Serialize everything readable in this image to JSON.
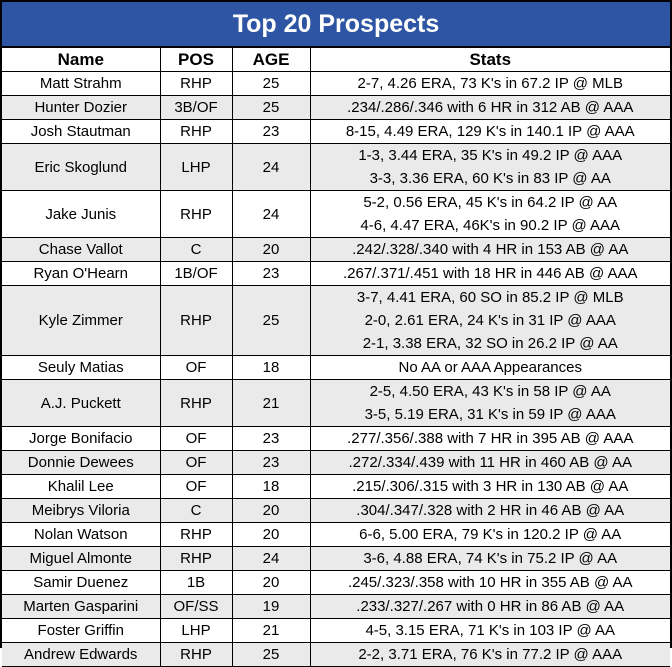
{
  "title": "Top 20 Prospects",
  "columns": [
    "Name",
    "POS",
    "AGE",
    "Stats"
  ],
  "rows": [
    {
      "name": "Matt Strahm",
      "pos": "RHP",
      "age": "25",
      "stats": [
        "2-7, 4.26 ERA, 73 K's in 67.2 IP @ MLB"
      ]
    },
    {
      "name": "Hunter Dozier",
      "pos": "3B/OF",
      "age": "25",
      "stats": [
        ".234/.286/.346 with 6 HR in 312 AB @ AAA"
      ]
    },
    {
      "name": "Josh Stautman",
      "pos": "RHP",
      "age": "23",
      "stats": [
        "8-15, 4.49 ERA, 129 K's in 140.1 IP @ AAA"
      ]
    },
    {
      "name": "Eric Skoglund",
      "pos": "LHP",
      "age": "24",
      "stats": [
        "1-3, 3.44 ERA, 35 K's in 49.2 IP @ AAA",
        "3-3, 3.36 ERA, 60 K's in 83 IP @ AA"
      ]
    },
    {
      "name": "Jake Junis",
      "pos": "RHP",
      "age": "24",
      "stats": [
        "5-2, 0.56 ERA, 45 K's in 64.2 IP @ AA",
        "4-6, 4.47 ERA, 46K's in 90.2 IP @ AAA"
      ]
    },
    {
      "name": "Chase Vallot",
      "pos": "C",
      "age": "20",
      "stats": [
        ".242/.328/.340 with 4 HR in 153 AB @ AA"
      ]
    },
    {
      "name": "Ryan O'Hearn",
      "pos": "1B/OF",
      "age": "23",
      "stats": [
        ".267/.371/.451 with 18 HR in 446 AB @ AAA"
      ]
    },
    {
      "name": "Kyle Zimmer",
      "pos": "RHP",
      "age": "25",
      "stats": [
        "3-7, 4.41 ERA, 60 SO in 85.2 IP @ MLB",
        "2-0, 2.61 ERA, 24 K's in 31 IP @ AAA",
        "2-1, 3.38 ERA, 32 SO in 26.2 IP @ AA"
      ]
    },
    {
      "name": "Seuly Matias",
      "pos": "OF",
      "age": "18",
      "stats": [
        "No AA or AAA Appearances"
      ]
    },
    {
      "name": "A.J. Puckett",
      "pos": "RHP",
      "age": "21",
      "stats": [
        "2-5, 4.50 ERA, 43 K's in 58 IP @ AA",
        "3-5, 5.19 ERA, 31 K's in 59 IP @ AAA"
      ]
    },
    {
      "name": "Jorge Bonifacio",
      "pos": "OF",
      "age": "23",
      "stats": [
        ".277/.356/.388 with 7 HR in 395 AB @ AAA"
      ]
    },
    {
      "name": "Donnie Dewees",
      "pos": "OF",
      "age": "23",
      "stats": [
        ".272/.334/.439 with 11 HR in 460 AB @ AA"
      ]
    },
    {
      "name": "Khalil Lee",
      "pos": "OF",
      "age": "18",
      "stats": [
        ".215/.306/.315 with 3 HR in 130 AB @ AA"
      ]
    },
    {
      "name": "Meibrys Viloria",
      "pos": "C",
      "age": "20",
      "stats": [
        ".304/.347/.328 with 2 HR in 46 AB @ AA"
      ]
    },
    {
      "name": "Nolan Watson",
      "pos": "RHP",
      "age": "20",
      "stats": [
        "6-6, 5.00 ERA, 79 K's in 120.2 IP @ AA"
      ]
    },
    {
      "name": "Miguel Almonte",
      "pos": "RHP",
      "age": "24",
      "stats": [
        "3-6, 4.88 ERA, 74 K's in 75.2 IP @ AA"
      ]
    },
    {
      "name": "Samir Duenez",
      "pos": "1B",
      "age": "20",
      "stats": [
        ".245/.323/.358 with 10 HR in 355 AB @ AA"
      ]
    },
    {
      "name": "Marten Gasparini",
      "pos": "OF/SS",
      "age": "19",
      "stats": [
        ".233/.327/.267 with 0 HR in 86 AB @ AA"
      ]
    },
    {
      "name": "Foster Griffin",
      "pos": "LHP",
      "age": "21",
      "stats": [
        "4-5, 3.15 ERA, 71 K's in 103 IP  @ AA"
      ]
    },
    {
      "name": "Andrew Edwards",
      "pos": "RHP",
      "age": "25",
      "stats": [
        "2-2, 3.71 ERA, 76 K's in 77.2 IP @ AAA"
      ]
    }
  ],
  "colors": {
    "title_bg": "#2e55a3",
    "row_shade": "#eaeaea"
  }
}
